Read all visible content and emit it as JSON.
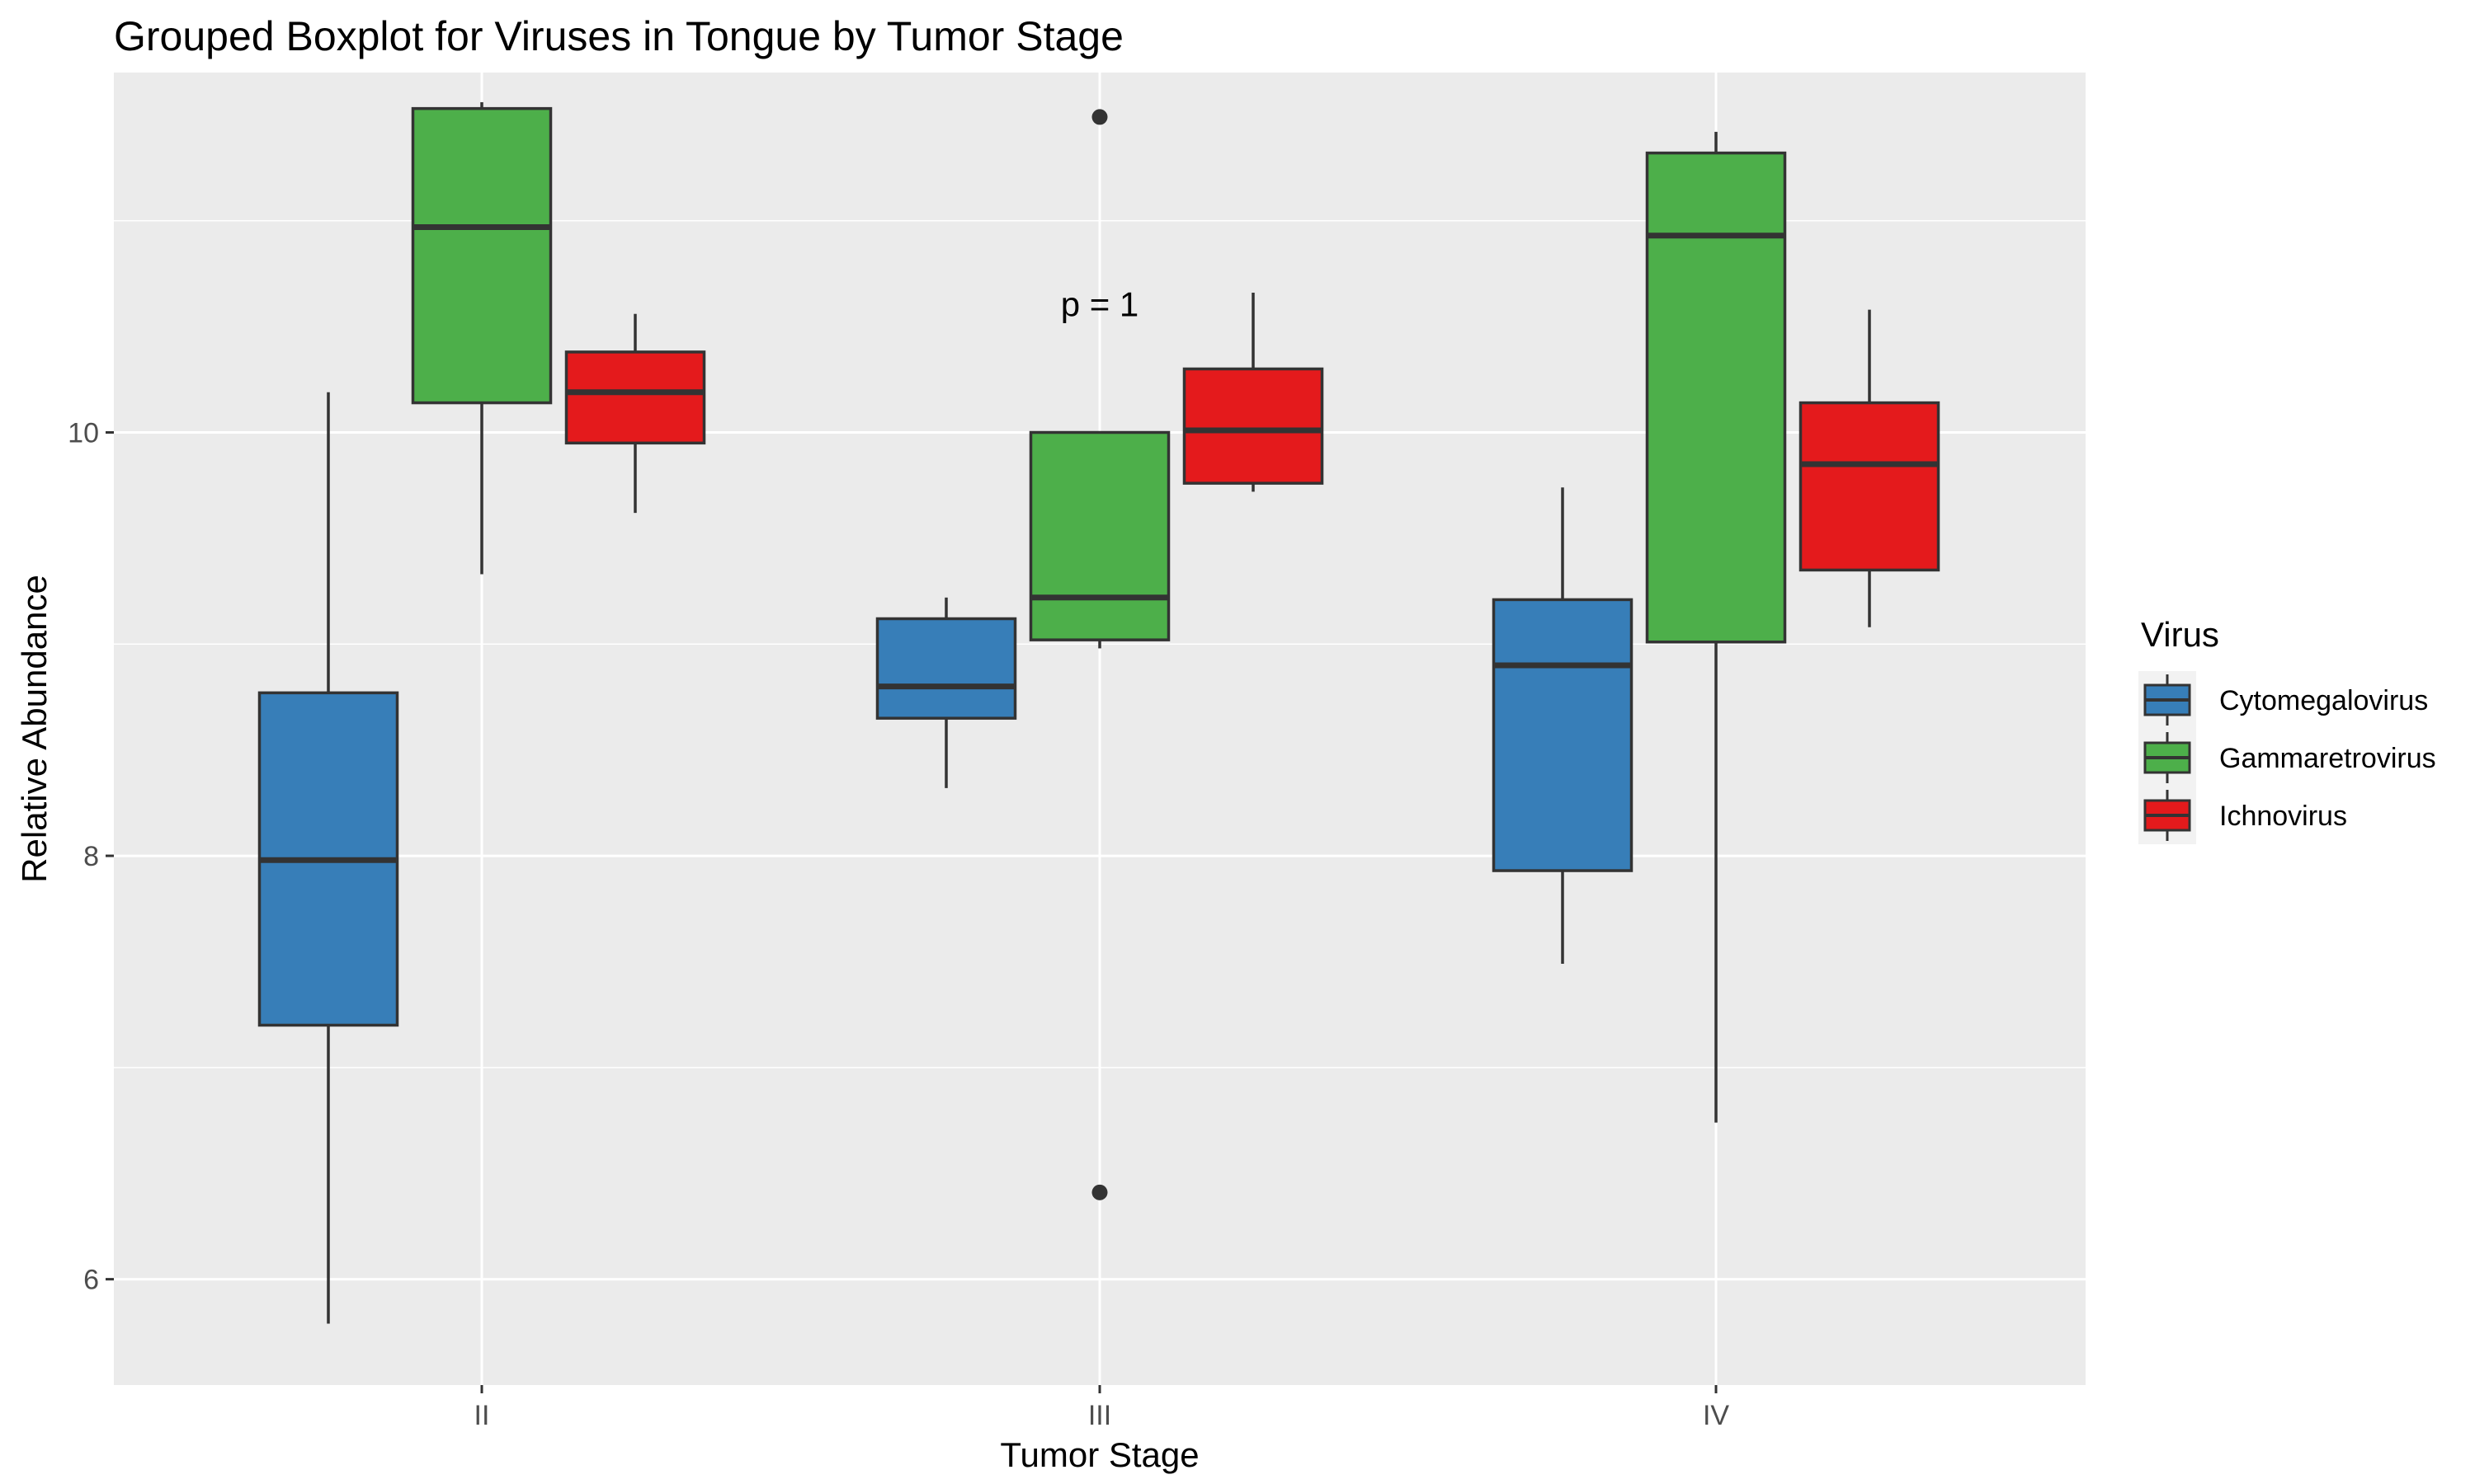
{
  "chart_data": {
    "type": "boxplot",
    "title": "Grouped Boxplot for Viruses in Tongue by Tumor Stage",
    "xlabel": "Tumor Stage",
    "ylabel": "Relative Abundance",
    "categories": [
      "II",
      "III",
      "IV"
    ],
    "ylim": [
      5.5,
      11.7
    ],
    "yticks": [
      6,
      8,
      10
    ],
    "grid": true,
    "legend": {
      "title": "Virus",
      "placement": "right"
    },
    "annotation": {
      "text": "p = 1",
      "x": "III",
      "y": 10.55
    },
    "series": [
      {
        "name": "Cytomegalovirus",
        "color": "#377EB8",
        "boxes": [
          {
            "category": "II",
            "min": 5.79,
            "q1": 7.2,
            "median": 7.98,
            "q3": 8.77,
            "max": 10.19,
            "outliers": []
          },
          {
            "category": "III",
            "min": 8.32,
            "q1": 8.65,
            "median": 8.8,
            "q3": 9.12,
            "max": 9.22,
            "outliers": []
          },
          {
            "category": "IV",
            "min": 7.49,
            "q1": 7.93,
            "median": 8.9,
            "q3": 9.21,
            "max": 9.74,
            "outliers": []
          }
        ]
      },
      {
        "name": "Gammaretrovirus",
        "color": "#4DAF4A",
        "boxes": [
          {
            "category": "II",
            "min": 9.33,
            "q1": 10.14,
            "median": 10.97,
            "q3": 11.53,
            "max": 11.56,
            "outliers": []
          },
          {
            "category": "III",
            "min": 8.98,
            "q1": 9.02,
            "median": 9.22,
            "q3": 10.0,
            "max": 10.0,
            "outliers": [
              11.49,
              6.41
            ]
          },
          {
            "category": "IV",
            "min": 6.74,
            "q1": 9.01,
            "median": 10.93,
            "q3": 11.32,
            "max": 11.42,
            "outliers": []
          }
        ]
      },
      {
        "name": "Ichnovirus",
        "color": "#E41A1C",
        "boxes": [
          {
            "category": "II",
            "min": 9.62,
            "q1": 9.95,
            "median": 10.19,
            "q3": 10.38,
            "max": 10.56,
            "outliers": []
          },
          {
            "category": "III",
            "min": 9.72,
            "q1": 9.76,
            "median": 10.01,
            "q3": 10.3,
            "max": 10.66,
            "outliers": []
          },
          {
            "category": "IV",
            "min": 9.08,
            "q1": 9.35,
            "median": 9.85,
            "q3": 10.14,
            "max": 10.58,
            "outliers": []
          }
        ]
      }
    ]
  }
}
